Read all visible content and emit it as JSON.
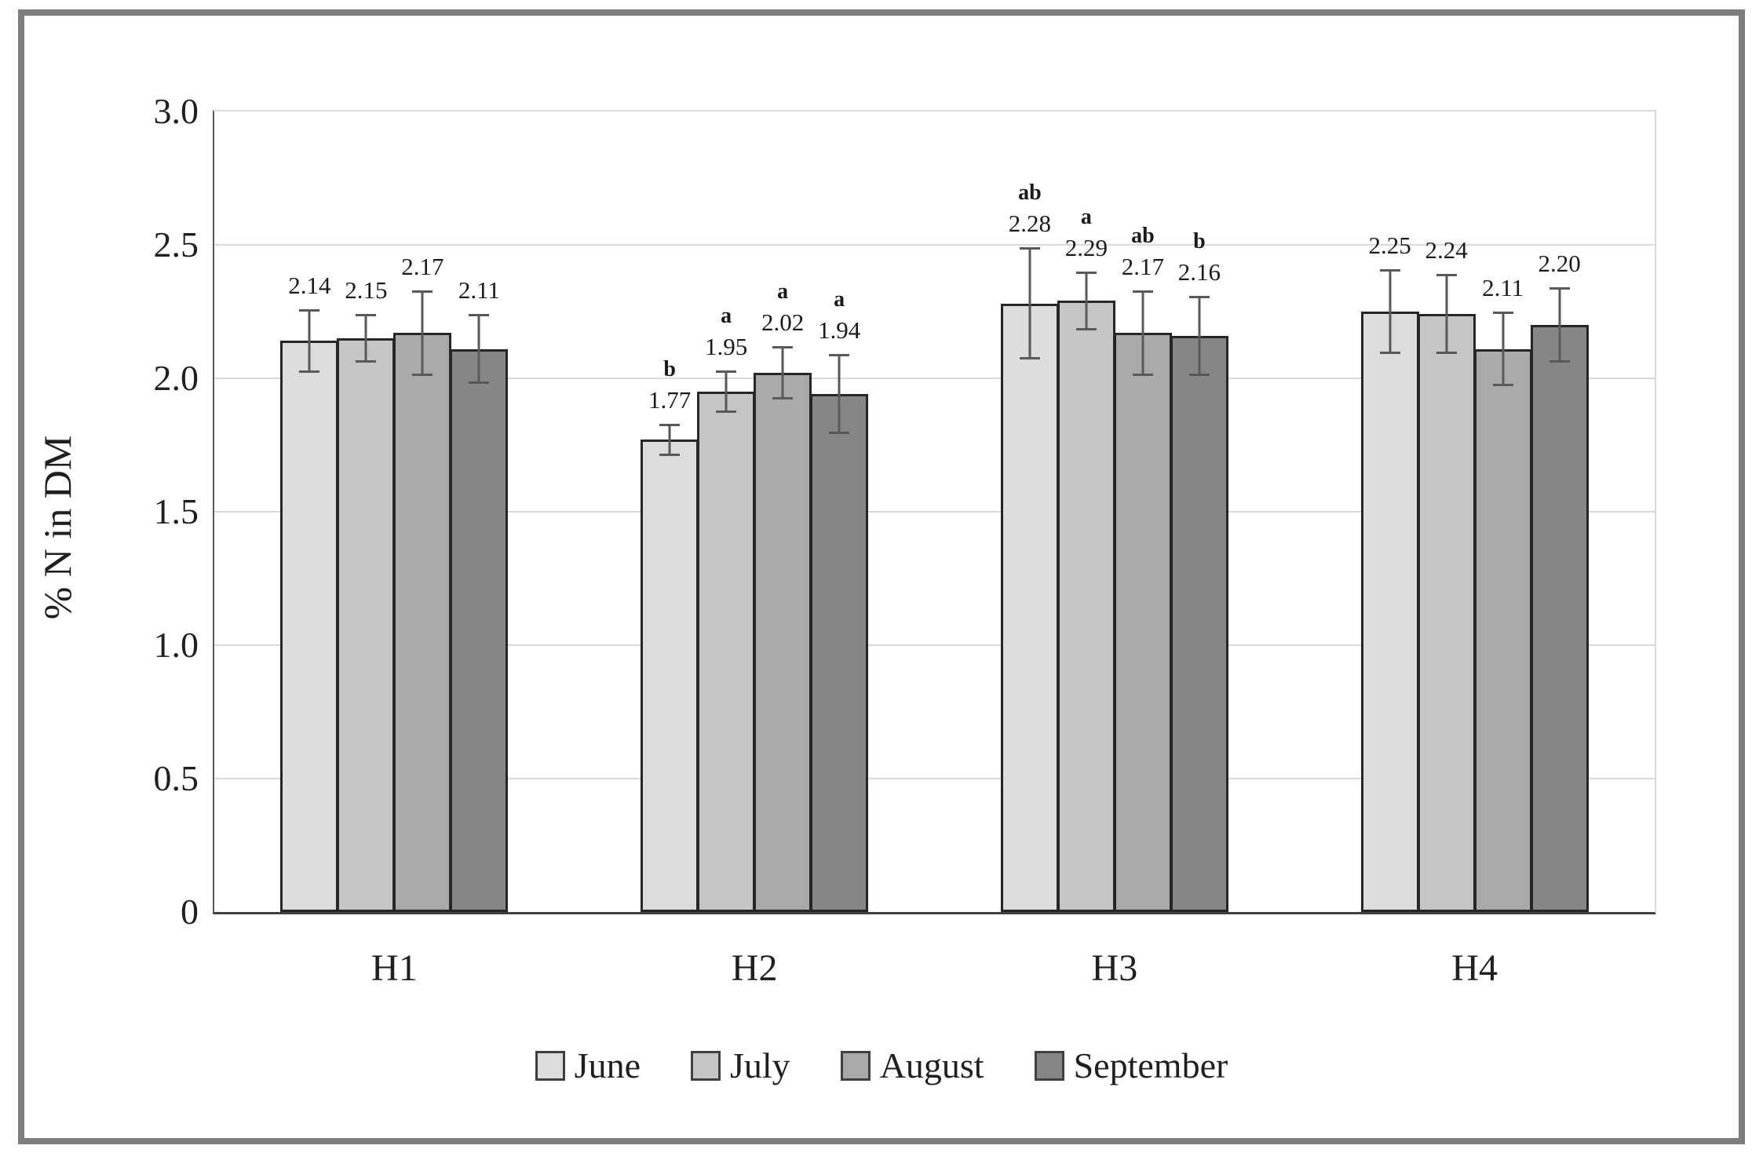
{
  "chart_data": {
    "type": "bar",
    "title": "",
    "xlabel": "",
    "ylabel": "% N in DM",
    "ylim": [
      0,
      3.0
    ],
    "ytick_step": 0.5,
    "yticks": [
      {
        "value": 3.0,
        "label": "3.0"
      },
      {
        "value": 2.5,
        "label": "2.5"
      },
      {
        "value": 2.0,
        "label": "2.0"
      },
      {
        "value": 1.5,
        "label": "1.5"
      },
      {
        "value": 1.0,
        "label": "1.0"
      },
      {
        "value": 0.5,
        "label": "0.5"
      },
      {
        "value": 0.0,
        "label": "0"
      }
    ],
    "grid": true,
    "legend_position": "bottom",
    "categories": [
      "H1",
      "H2",
      "H3",
      "H4"
    ],
    "series": [
      {
        "name": "June",
        "color": "#dcdcdc",
        "values": [
          2.14,
          1.77,
          2.28,
          2.25
        ],
        "errors": [
          0.12,
          0.06,
          0.21,
          0.16
        ],
        "letters": [
          "",
          "b",
          "ab",
          ""
        ]
      },
      {
        "name": "July",
        "color": "#c5c5c5",
        "values": [
          2.15,
          1.95,
          2.29,
          2.24
        ],
        "errors": [
          0.09,
          0.08,
          0.11,
          0.15
        ],
        "letters": [
          "",
          "a",
          "a",
          ""
        ]
      },
      {
        "name": "August",
        "color": "#a9a9a9",
        "values": [
          2.17,
          2.02,
          2.17,
          2.11
        ],
        "errors": [
          0.16,
          0.1,
          0.16,
          0.14
        ],
        "letters": [
          "",
          "a",
          "ab",
          ""
        ]
      },
      {
        "name": "September",
        "color": "#868686",
        "values": [
          2.11,
          1.94,
          2.16,
          2.2
        ],
        "errors": [
          0.13,
          0.15,
          0.15,
          0.14
        ],
        "letters": [
          "",
          "a",
          "b",
          ""
        ]
      }
    ],
    "value_label_decimals": 2,
    "style": {
      "gridline_color": "#d9d9d9",
      "axis_x_color": "#404040",
      "axis_y_color": "#595959",
      "error_bar_color": "#595959",
      "bar_border_color": "#262626",
      "frame_border_color": "#7d7d7d",
      "text_color": "#1a1a1a"
    }
  }
}
